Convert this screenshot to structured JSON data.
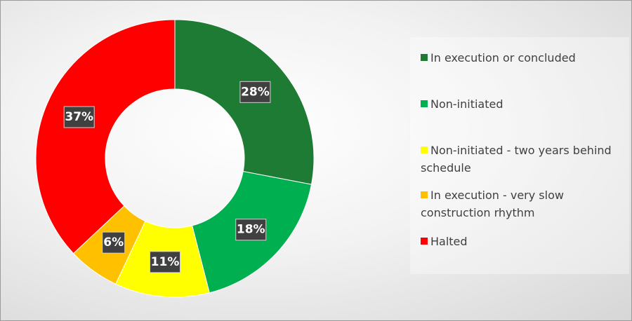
{
  "chart_data": {
    "type": "donut",
    "categories": [
      "In execution or concluded",
      "Non-initiated",
      "Non-initiated - two years behind schedule",
      "In execution - very slow construction rhythm",
      "Halted"
    ],
    "values": [
      28,
      18,
      11,
      6,
      37
    ],
    "value_labels": [
      "28%",
      "18%",
      "11%",
      "6%",
      "37%"
    ],
    "colors": [
      "#1e7b34",
      "#00b050",
      "#ffff00",
      "#ffc000",
      "#ff0000"
    ],
    "legend": "right"
  }
}
